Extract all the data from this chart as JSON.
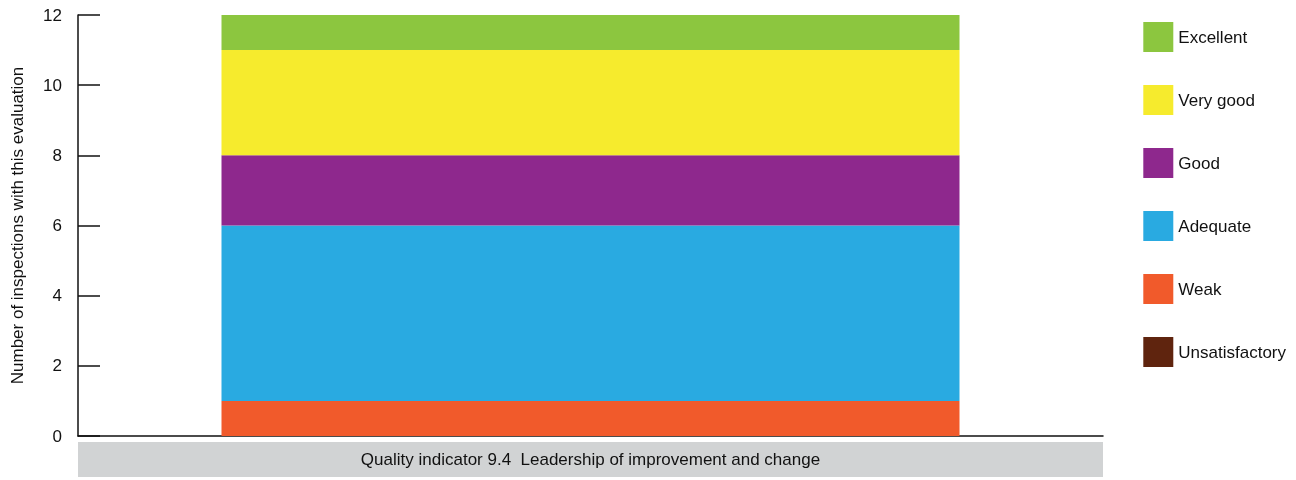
{
  "chart_data": {
    "type": "bar",
    "stacked": true,
    "ylabel": "Number of inspections with this evaluation",
    "categories": [
      "Quality indicator 9.4  Leadership of improvement and change"
    ],
    "series": [
      {
        "name": "Unsatisfactory",
        "color": "#5f240e",
        "values": [
          0
        ]
      },
      {
        "name": "Weak",
        "color": "#f15a2b",
        "values": [
          1
        ]
      },
      {
        "name": "Adequate",
        "color": "#29aae1",
        "values": [
          5
        ]
      },
      {
        "name": "Good",
        "color": "#8e288d",
        "values": [
          2
        ]
      },
      {
        "name": "Very good",
        "color": "#f6eb2d",
        "values": [
          3
        ]
      },
      {
        "name": "Excellent",
        "color": "#8cc63f",
        "values": [
          1
        ]
      }
    ],
    "ylim": [
      0,
      12
    ],
    "yticks": [
      0,
      2,
      4,
      6,
      8,
      10,
      12
    ],
    "grid": false,
    "legend": "right"
  }
}
